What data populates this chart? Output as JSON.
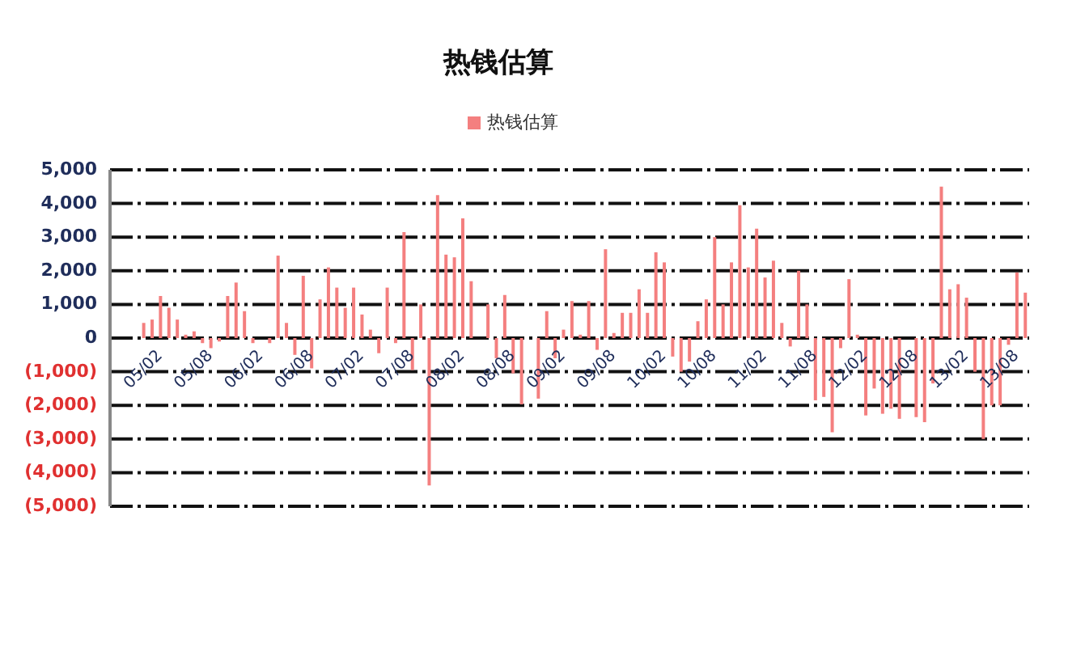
{
  "chart_data": {
    "type": "bar",
    "title": "热钱估算",
    "categories": [
      "05/02",
      null,
      null,
      null,
      null,
      null,
      "05/08",
      null,
      null,
      null,
      null,
      null,
      "06/02",
      null,
      null,
      null,
      null,
      null,
      "06/08",
      null,
      null,
      null,
      null,
      null,
      "07/02",
      null,
      null,
      null,
      null,
      null,
      "07/08",
      null,
      null,
      null,
      null,
      null,
      "08/02",
      null,
      null,
      null,
      null,
      null,
      "08/08",
      null,
      null,
      null,
      null,
      null,
      "09/02",
      null,
      null,
      null,
      null,
      null,
      "09/08",
      null,
      null,
      null,
      null,
      null,
      "10/02",
      null,
      null,
      null,
      null,
      null,
      "10/08",
      null,
      null,
      null,
      null,
      null,
      "11/02",
      null,
      null,
      null,
      null,
      null,
      "11/08",
      null,
      null,
      null,
      null,
      null,
      "12/02",
      null,
      null,
      null,
      null,
      null,
      "12/08",
      null,
      null,
      null,
      null,
      null,
      "13/02",
      null,
      null,
      null,
      null,
      null,
      "13/08",
      null,
      null,
      null
    ],
    "series": [
      {
        "name": "热钱估算",
        "color": "#f47f7f",
        "values": [
          450,
          550,
          1250,
          900,
          550,
          100,
          200,
          -150,
          -300,
          -100,
          1250,
          1650,
          800,
          -150,
          null,
          -150,
          2450,
          450,
          -500,
          1850,
          -900,
          1150,
          2100,
          1500,
          900,
          1500,
          700,
          250,
          -450,
          1500,
          -150,
          3150,
          -950,
          1000,
          -4380,
          4250,
          2480,
          2400,
          3560,
          1690,
          null,
          1000,
          -600,
          1280,
          -1050,
          -1970,
          null,
          -1800,
          800,
          -600,
          250,
          1100,
          100,
          1100,
          -350,
          2640,
          150,
          750,
          750,
          1450,
          750,
          2550,
          2250,
          -550,
          -1000,
          -700,
          500,
          1150,
          3000,
          1000,
          2250,
          3950,
          2100,
          3250,
          1800,
          2300,
          450,
          -250,
          2000,
          1000,
          -1850,
          -1750,
          -2800,
          -300,
          1750,
          100,
          -2300,
          -1500,
          -2250,
          -2100,
          -2400,
          null,
          -2350,
          -2500,
          -1350,
          4500,
          1450,
          1600,
          1200,
          -1000,
          -3000,
          -2000,
          -2000,
          -200,
          1950,
          1350
        ]
      }
    ],
    "ylim": [
      -5000,
      5000
    ],
    "yticks": [
      {
        "value": 5000,
        "label": "5,000"
      },
      {
        "value": 4000,
        "label": "4,000"
      },
      {
        "value": 3000,
        "label": "3,000"
      },
      {
        "value": 2000,
        "label": "2,000"
      },
      {
        "value": 1000,
        "label": "1,000"
      },
      {
        "value": 0,
        "label": "0"
      },
      {
        "value": -1000,
        "label": "(1,000)"
      },
      {
        "value": -2000,
        "label": "(2,000)"
      },
      {
        "value": -3000,
        "label": "(3,000)"
      },
      {
        "value": -4000,
        "label": "(4,000)"
      },
      {
        "value": -5000,
        "label": "(5,000)"
      }
    ],
    "grid": "y",
    "legend": "top"
  }
}
